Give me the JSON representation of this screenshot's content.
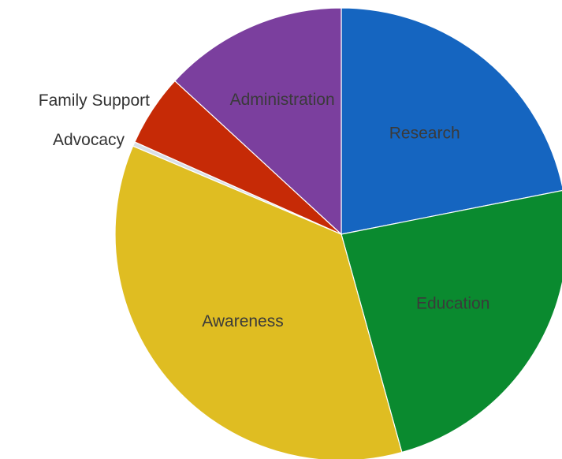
{
  "chart_data": {
    "type": "pie",
    "title": "",
    "slices": [
      {
        "label": "Research",
        "value": 20.8,
        "color": "#1565c0",
        "label_position": "inside"
      },
      {
        "label": "Education",
        "value": 22.6,
        "color": "#0a8a2f",
        "label_position": "inside"
      },
      {
        "label": "Awareness",
        "value": 33.9,
        "color": "#dfbd22",
        "label_position": "inside"
      },
      {
        "label": "Advocacy",
        "value": 0.3,
        "color": "#d9dfe6",
        "label_position": "outside"
      },
      {
        "label": "Family Support",
        "value": 4.9,
        "color": "#c62a06",
        "label_position": "outside"
      },
      {
        "label": "Administration",
        "value": 12.5,
        "color": "#7b3f9e",
        "label_position": "inside"
      }
    ],
    "start_angle": "12 o'clock",
    "direction": "clockwise",
    "legend": "none"
  }
}
